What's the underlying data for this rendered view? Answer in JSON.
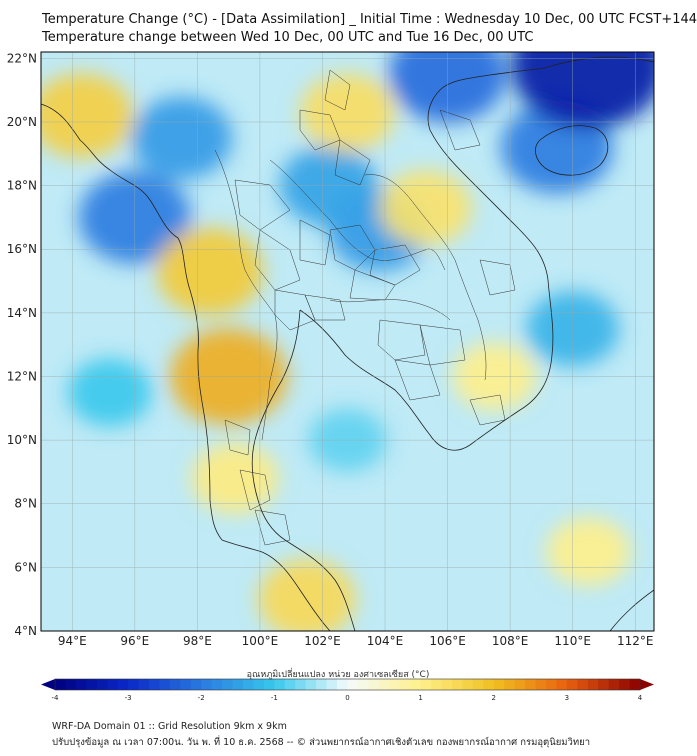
{
  "title": {
    "line1": "Temperature Change (°C) - [Data Assimilation] _ Initial Time : Wednesday 10 Dec, 00 UTC FCST+144",
    "line2": "Temperature change between Wed 10 Dec, 00 UTC and Tue 16 Dec, 00 UTC"
  },
  "map": {
    "lat_labels": [
      "22°N",
      "20°N",
      "18°N",
      "16°N",
      "14°N",
      "12°N",
      "10°N",
      "8°N",
      "6°N",
      "4°N"
    ],
    "lon_labels": [
      "94°E",
      "96°E",
      "98°E",
      "100°E",
      "102°E",
      "104°E",
      "106°E",
      "108°E",
      "110°E",
      "112°E"
    ],
    "lat_values": [
      22,
      20,
      18,
      16,
      14,
      12,
      10,
      8,
      6,
      4
    ],
    "lon_values": [
      94,
      96,
      98,
      100,
      102,
      104,
      106,
      108,
      110,
      112
    ],
    "lon_range": [
      93,
      112.6
    ],
    "lat_range": [
      4,
      22.2
    ],
    "field_anomalies": [
      {
        "region": "bay-of-bengal-cold",
        "lon": 96.0,
        "lat": 17.0,
        "value": -2.0
      },
      {
        "region": "hainan-cold",
        "lon": 109.5,
        "lat": 19.2,
        "value": -2.0
      },
      {
        "region": "south-china-cold",
        "lon": 110.5,
        "lat": 21.8,
        "value": -3.5
      },
      {
        "region": "north-vietnam-cold",
        "lon": 106.0,
        "lat": 21.5,
        "value": -2.2
      },
      {
        "region": "north-myanmar-cold",
        "lon": 97.5,
        "lat": 19.5,
        "value": -1.6
      },
      {
        "region": "isan-cold",
        "lon": 103.8,
        "lat": 16.6,
        "value": -1.6
      },
      {
        "region": "laos-cold",
        "lon": 102.2,
        "lat": 18.0,
        "value": -1.5
      },
      {
        "region": "tenasserim-warm",
        "lon": 99.0,
        "lat": 12.0,
        "value": 2.2
      },
      {
        "region": "west-thailand-warm",
        "lon": 98.4,
        "lat": 15.3,
        "value": 1.8
      },
      {
        "region": "myanmar-west-warm",
        "lon": 94.3,
        "lat": 20.2,
        "value": 1.7
      },
      {
        "region": "north-laos-warm",
        "lon": 102.8,
        "lat": 20.3,
        "value": 1.4
      },
      {
        "region": "vietnam-coast-warm",
        "lon": 105.3,
        "lat": 17.3,
        "value": 1.3
      },
      {
        "region": "malay-warm",
        "lon": 101.5,
        "lat": 5.0,
        "value": 1.5
      },
      {
        "region": "peninsula-warm",
        "lon": 99.2,
        "lat": 8.8,
        "value": 1.1
      },
      {
        "region": "south-vietnam-warm",
        "lon": 107.5,
        "lat": 12.0,
        "value": 1.0
      },
      {
        "region": "scs-cold",
        "lon": 110.0,
        "lat": 13.5,
        "value": -1.3
      },
      {
        "region": "scs-south-warm",
        "lon": 110.5,
        "lat": 6.5,
        "value": 1.0
      },
      {
        "region": "andaman-cold",
        "lon": 95.2,
        "lat": 11.5,
        "value": -1.0
      },
      {
        "region": "gulf-cold",
        "lon": 102.8,
        "lat": 10.0,
        "value": -0.8
      }
    ]
  },
  "colorbar": {
    "title": "อุณหภูมิเปลี่ยนแปลง หน่วย องศาเซลเซียส (°C)",
    "ticks": [
      "-4",
      "-3",
      "-2",
      "-1",
      "0",
      "1",
      "2",
      "3",
      "4"
    ],
    "tick_values": [
      -4,
      -3,
      -2,
      -1,
      0,
      1,
      2,
      3,
      4
    ],
    "colors": [
      "#000080",
      "#0a28c8",
      "#2a7ae0",
      "#38c8ec",
      "#f4fbfd",
      "#fff08a",
      "#f0c020",
      "#e86010",
      "#8b0000"
    ]
  },
  "footer": {
    "line1": "WRF-DA Domain 01 :: Grid Resolution 9km x 9km",
    "line2": "ปรับปรุงข้อมูล ณ เวลา 07:00น. วัน พ. ที่ 10 ธ.ค. 2568 -- © ส่วนพยากรณ์อากาศเชิงตัวเลข กองพยากรณ์อากาศ กรมอุตุนิยมวิทยา"
  }
}
